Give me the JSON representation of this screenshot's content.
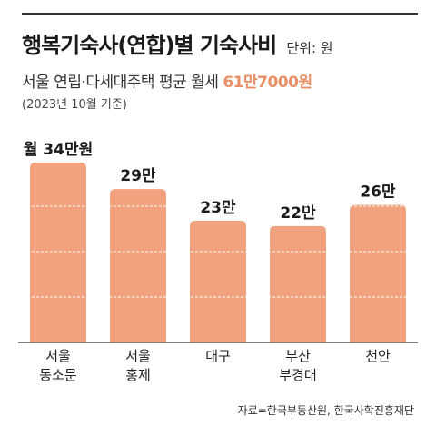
{
  "header": {
    "title": "행복기숙사(연합)별 기숙사비",
    "unit": "단위: 원",
    "subtitle_prefix": "서울 연립·다세대주택 평균 월세",
    "subtitle_value": "61만7000원",
    "note": "(2023년 10월 기준)"
  },
  "chart_data": {
    "type": "bar",
    "categories": [
      [
        "서울",
        "동소문"
      ],
      [
        "서울",
        "홍제"
      ],
      [
        "대구"
      ],
      [
        "부산",
        "부경대"
      ],
      [
        "천안"
      ]
    ],
    "values": [
      34,
      29,
      23,
      22,
      26
    ],
    "value_labels": [
      "월 34만원",
      "29만",
      "23만",
      "22만",
      "26만"
    ],
    "ylim": [
      0,
      34
    ],
    "grid": true,
    "colors": {
      "bar": "#f2a27e",
      "grid": "#ffffff",
      "axis": "#333333"
    }
  },
  "footer": {
    "source": "자료=한국부동산원, 한국사학진흥재단"
  }
}
